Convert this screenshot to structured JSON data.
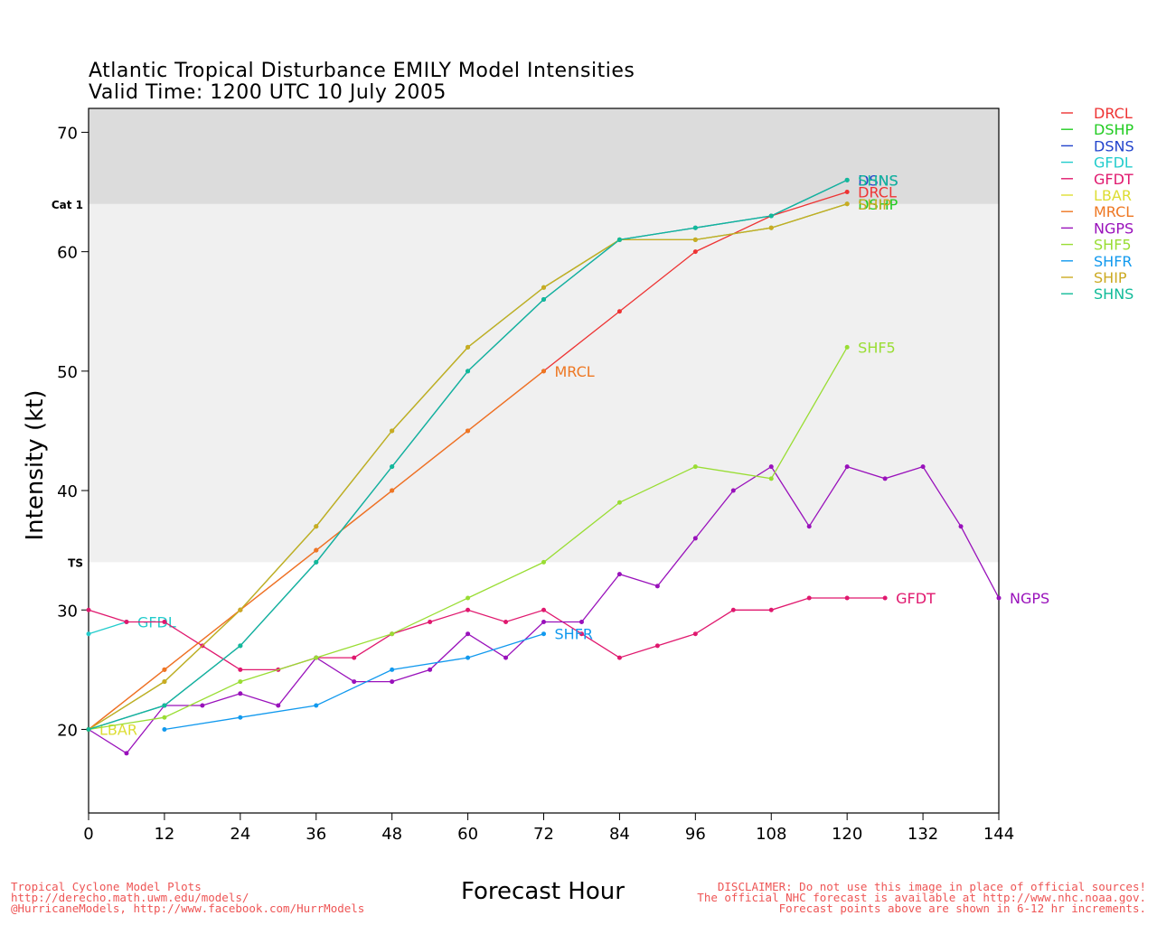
{
  "chart_data": {
    "type": "line",
    "title": "Atlantic Tropical Disturbance EMILY Model Intensities",
    "subtitle": "Valid Time: 1200 UTC 10 July 2005",
    "xlabel": "Forecast Hour",
    "ylabel": "Intensity (kt)",
    "xlim": [
      0,
      144
    ],
    "ylim": [
      13,
      72
    ],
    "xticks": [
      "0",
      "12",
      "24",
      "36",
      "48",
      "60",
      "72",
      "84",
      "96",
      "108",
      "120",
      "132",
      "144"
    ],
    "yticks": [
      "20",
      "30",
      "40",
      "50",
      "60",
      "70"
    ],
    "bands": [
      {
        "label": "TS",
        "from": 34,
        "to": 64,
        "color": "#f0f0f0"
      },
      {
        "label": "Cat 1",
        "from": 64,
        "to": 72,
        "color": "#dcdcdc"
      }
    ],
    "threshold_labels": [
      {
        "label": "Cat 1",
        "value": 64
      },
      {
        "label": "TS",
        "value": 34
      }
    ],
    "legend_position": "right",
    "series": [
      {
        "name": "DRCL",
        "color": "#ee3333",
        "end_label": "DRCL",
        "points": [
          [
            0,
            20
          ],
          [
            12,
            25
          ],
          [
            24,
            30
          ],
          [
            36,
            35
          ],
          [
            48,
            40
          ],
          [
            60,
            45
          ],
          [
            72,
            50
          ],
          [
            84,
            55
          ],
          [
            96,
            60
          ],
          [
            108,
            63
          ],
          [
            120,
            65
          ]
        ]
      },
      {
        "name": "DSHP",
        "color": "#22cc22",
        "end_label": "DSHP",
        "points": [
          [
            0,
            20
          ],
          [
            12,
            24
          ],
          [
            24,
            30
          ],
          [
            36,
            37
          ],
          [
            48,
            45
          ],
          [
            60,
            52
          ],
          [
            72,
            57
          ],
          [
            84,
            61
          ],
          [
            96,
            61
          ],
          [
            108,
            62
          ],
          [
            120,
            64
          ]
        ]
      },
      {
        "name": "DSNS",
        "color": "#2244cc",
        "end_label": "DSNS",
        "points": [
          [
            0,
            20
          ],
          [
            12,
            22
          ],
          [
            24,
            27
          ],
          [
            36,
            34
          ],
          [
            48,
            42
          ],
          [
            60,
            50
          ],
          [
            72,
            56
          ],
          [
            84,
            61
          ],
          [
            96,
            62
          ],
          [
            108,
            63
          ],
          [
            120,
            66
          ]
        ]
      },
      {
        "name": "GFDL",
        "color": "#22cccc",
        "end_label": "GFDL",
        "points": [
          [
            0,
            28
          ],
          [
            6,
            29
          ]
        ]
      },
      {
        "name": "GFDT",
        "color": "#e0186e",
        "end_label": "GFDT",
        "points": [
          [
            0,
            30
          ],
          [
            6,
            29
          ],
          [
            12,
            29
          ],
          [
            18,
            27
          ],
          [
            24,
            25
          ],
          [
            30,
            25
          ],
          [
            36,
            26
          ],
          [
            42,
            26
          ],
          [
            48,
            28
          ],
          [
            54,
            29
          ],
          [
            60,
            30
          ],
          [
            66,
            29
          ],
          [
            72,
            30
          ],
          [
            78,
            28
          ],
          [
            84,
            26
          ],
          [
            90,
            27
          ],
          [
            96,
            28
          ],
          [
            102,
            30
          ],
          [
            108,
            30
          ],
          [
            114,
            31
          ],
          [
            120,
            31
          ],
          [
            126,
            31
          ]
        ]
      },
      {
        "name": "LBAR",
        "color": "#dddd33",
        "end_label": "LBAR",
        "points": [
          [
            0,
            20
          ]
        ]
      },
      {
        "name": "MRCL",
        "color": "#ee7722",
        "end_label": "MRCL",
        "points": [
          [
            0,
            20
          ],
          [
            12,
            25
          ],
          [
            24,
            30
          ],
          [
            36,
            35
          ],
          [
            48,
            40
          ],
          [
            60,
            45
          ],
          [
            72,
            50
          ]
        ]
      },
      {
        "name": "NGPS",
        "color": "#9911bb",
        "end_label": "NGPS",
        "points": [
          [
            0,
            20
          ],
          [
            6,
            18
          ],
          [
            12,
            22
          ],
          [
            18,
            22
          ],
          [
            24,
            23
          ],
          [
            30,
            22
          ],
          [
            36,
            26
          ],
          [
            42,
            24
          ],
          [
            48,
            24
          ],
          [
            54,
            25
          ],
          [
            60,
            28
          ],
          [
            66,
            26
          ],
          [
            72,
            29
          ],
          [
            78,
            29
          ],
          [
            84,
            33
          ],
          [
            90,
            32
          ],
          [
            96,
            36
          ],
          [
            102,
            40
          ],
          [
            108,
            42
          ],
          [
            114,
            37
          ],
          [
            120,
            42
          ],
          [
            126,
            41
          ],
          [
            132,
            42
          ],
          [
            138,
            37
          ],
          [
            144,
            31
          ]
        ]
      },
      {
        "name": "SHF5",
        "color": "#99dd33",
        "end_label": "SHF5",
        "points": [
          [
            0,
            20
          ],
          [
            12,
            21
          ],
          [
            24,
            24
          ],
          [
            36,
            26
          ],
          [
            48,
            28
          ],
          [
            60,
            31
          ],
          [
            72,
            34
          ],
          [
            84,
            39
          ],
          [
            96,
            42
          ],
          [
            108,
            41
          ],
          [
            120,
            52
          ]
        ]
      },
      {
        "name": "SHFR",
        "color": "#1199ee",
        "end_label": "SHFR",
        "points": [
          [
            12,
            20
          ],
          [
            24,
            21
          ],
          [
            36,
            22
          ],
          [
            48,
            25
          ],
          [
            60,
            26
          ],
          [
            72,
            28
          ]
        ]
      },
      {
        "name": "SHIP",
        "color": "#ccaa22",
        "end_label": "SHIP",
        "points": [
          [
            0,
            20
          ],
          [
            12,
            24
          ],
          [
            24,
            30
          ],
          [
            36,
            37
          ],
          [
            48,
            45
          ],
          [
            60,
            52
          ],
          [
            72,
            57
          ],
          [
            84,
            61
          ],
          [
            96,
            61
          ],
          [
            108,
            62
          ],
          [
            120,
            64
          ]
        ]
      },
      {
        "name": "SHNS",
        "color": "#11bb99",
        "end_label": "SHNS",
        "points": [
          [
            0,
            20
          ],
          [
            12,
            22
          ],
          [
            24,
            27
          ],
          [
            36,
            34
          ],
          [
            48,
            42
          ],
          [
            60,
            50
          ],
          [
            72,
            56
          ],
          [
            84,
            61
          ],
          [
            96,
            62
          ],
          [
            108,
            63
          ],
          [
            120,
            66
          ]
        ]
      }
    ]
  },
  "footer": {
    "left": [
      "Tropical Cyclone Model Plots",
      "http://derecho.math.uwm.edu/models/",
      "@HurricaneModels, http://www.facebook.com/HurrModels"
    ],
    "right": [
      "DISCLAIMER: Do not use this image in place of official sources!",
      "The official NHC forecast is available at http://www.nhc.noaa.gov.",
      "Forecast points above are shown in 6-12 hr increments."
    ]
  }
}
